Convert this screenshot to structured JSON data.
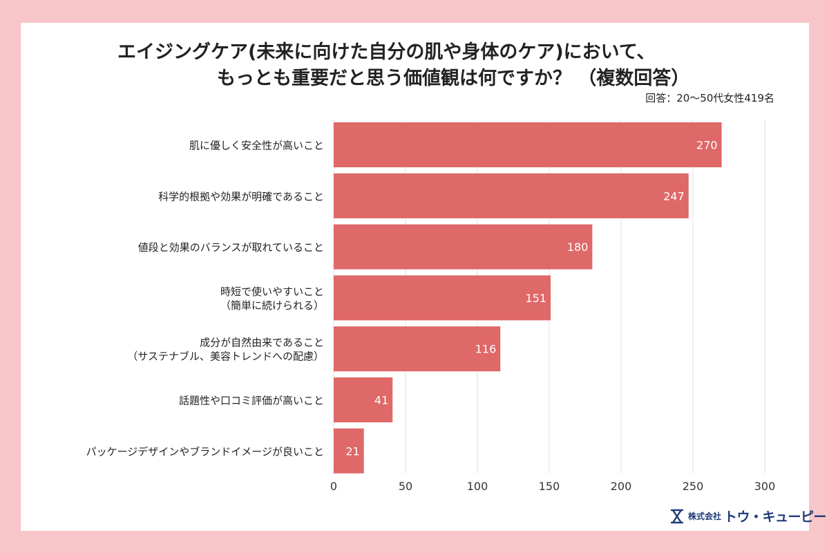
{
  "chart_data": {
    "type": "bar",
    "orientation": "horizontal",
    "title_lines": [
      "エイジングケア(未来に向けた自分の肌や身体のケア)において、",
      "もっとも重要だと思う価値観は何ですか？ （複数回答）"
    ],
    "subtitle": "回答：20〜50代女性419名",
    "categories": [
      [
        "肌に優しく安全性が高いこと"
      ],
      [
        "科学的根拠や効果が明確であること"
      ],
      [
        "値段と効果のバランスが取れていること"
      ],
      [
        "時短で使いやすいこと",
        "（簡単に続けられる）"
      ],
      [
        "成分が自然由来であること",
        "（サステナブル、美容トレンドへの配慮）"
      ],
      [
        "話題性や口コミ評価が高いこと"
      ],
      [
        "パッケージデザインやブランドイメージが良いこと"
      ]
    ],
    "values": [
      270,
      247,
      180,
      151,
      116,
      41,
      21
    ],
    "xlim": [
      0,
      300
    ],
    "xticks": [
      0,
      50,
      100,
      150,
      200,
      250,
      300
    ],
    "xlabel": "",
    "ylabel": "",
    "grid": true,
    "bar_color": "#df6868"
  },
  "brand": {
    "kk": "株式会社",
    "name": "トウ・キューピー",
    "color": "#1e3a78"
  }
}
